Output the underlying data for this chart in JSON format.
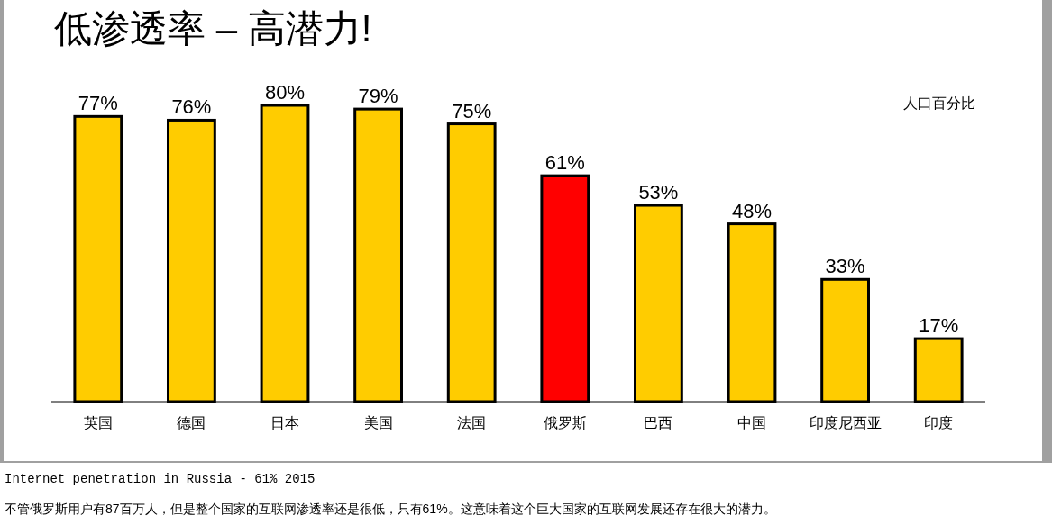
{
  "chart_data": {
    "type": "bar",
    "title": "低渗透率 – 高潜力!",
    "ylabel": "人口百分比",
    "categories": [
      "英国",
      "德国",
      "日本",
      "美国",
      "法国",
      "俄罗斯",
      "巴西",
      "中国",
      "印度尼西亚",
      "印度"
    ],
    "values": [
      77,
      76,
      80,
      79,
      75,
      61,
      53,
      48,
      33,
      17
    ],
    "colors": [
      "#ffcc00",
      "#ffcc00",
      "#ffcc00",
      "#ffcc00",
      "#ffcc00",
      "#ff0000",
      "#ffcc00",
      "#ffcc00",
      "#ffcc00",
      "#ffcc00"
    ],
    "value_labels": [
      "77%",
      "76%",
      "80%",
      "79%",
      "75%",
      "61%",
      "53%",
      "48%",
      "33%",
      "17%"
    ],
    "annotations": [
      "Internet penetration in Russia - 61% 2015",
      "不管俄罗斯用户有87百万人，但是整个国家的互联网渗透率还是很低，只有61%。这意味着这个巨大国家的互联网发展还存在很大的潜力。"
    ]
  }
}
